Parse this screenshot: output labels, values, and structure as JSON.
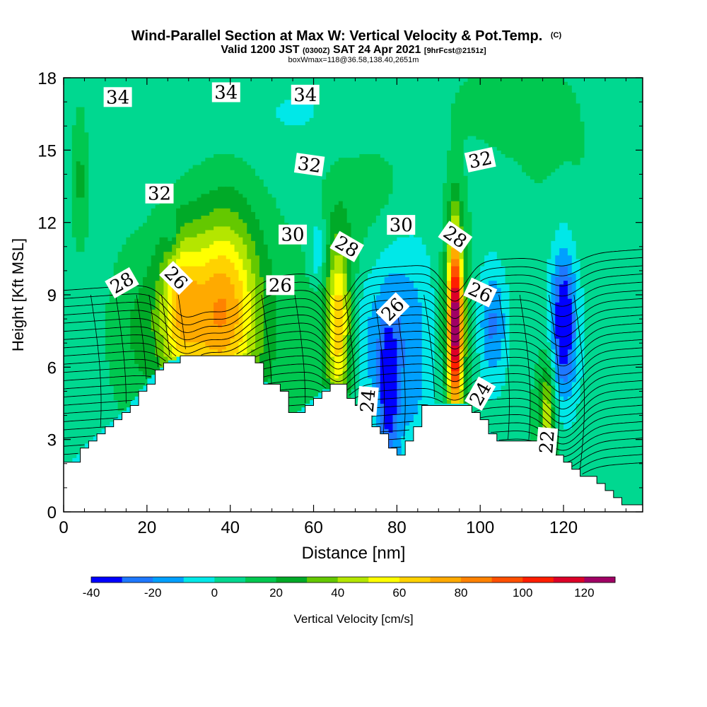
{
  "chart_data": {
    "type": "heatmap",
    "title": "Wind-Parallel Section at Max W: Vertical Velocity & Pot.Temp.",
    "title_mark": "(C)",
    "subtitle_main_a": "Valid 1200 JST",
    "subtitle_small_a": "(0300Z)",
    "subtitle_main_b": "SAT 24 Apr 2021",
    "subtitle_small_b": "[9hrFcst@2151z]",
    "subtitle2": "boxWmax=118@36.58,138.40,2651m",
    "xlabel": "Distance [nm]",
    "ylabel": "Height [Kft MSL]",
    "xlim": [
      0,
      139
    ],
    "ylim": [
      0,
      18
    ],
    "xticks": [
      "0",
      "20",
      "40",
      "60",
      "80",
      "100",
      "120"
    ],
    "yticks": [
      "0",
      "3",
      "6",
      "9",
      "12",
      "15",
      "18"
    ],
    "colorbar": {
      "label": "Vertical Velocity [cm/s]",
      "ticks": [
        "-40",
        "-20",
        "0",
        "20",
        "40",
        "60",
        "80",
        "100",
        "120"
      ],
      "levels": [
        -40,
        -30,
        -20,
        -10,
        0,
        10,
        20,
        30,
        40,
        50,
        60,
        70,
        80,
        90,
        100,
        110,
        120,
        130
      ],
      "colors": [
        "#0000ff",
        "#1e78ff",
        "#00a0ff",
        "#00e8e8",
        "#00d890",
        "#00c850",
        "#00aa28",
        "#64c800",
        "#b4e600",
        "#ffff00",
        "#ffd200",
        "#ffaa00",
        "#ff8200",
        "#ff5000",
        "#ff1e00",
        "#dc0028",
        "#a00064",
        "#6400a0"
      ]
    },
    "theta_contour_labels": [
      {
        "text": "34",
        "x": 13,
        "y": 17.2
      },
      {
        "text": "34",
        "x": 39,
        "y": 17.4
      },
      {
        "text": "34",
        "x": 58,
        "y": 17.3
      },
      {
        "text": "32",
        "x": 23,
        "y": 13.2
      },
      {
        "text": "32",
        "x": 59,
        "y": 14.4
      },
      {
        "text": "32",
        "x": 100,
        "y": 14.6
      },
      {
        "text": "30",
        "x": 55,
        "y": 11.5
      },
      {
        "text": "30",
        "x": 81,
        "y": 11.9
      },
      {
        "text": "28",
        "x": 14,
        "y": 9.5
      },
      {
        "text": "28",
        "x": 68,
        "y": 11.0
      },
      {
        "text": "28",
        "x": 94,
        "y": 11.4
      },
      {
        "text": "26",
        "x": 27,
        "y": 9.7
      },
      {
        "text": "26",
        "x": 52,
        "y": 9.4
      },
      {
        "text": "26",
        "x": 79,
        "y": 8.4
      },
      {
        "text": "26",
        "x": 100,
        "y": 9.1
      },
      {
        "text": "24",
        "x": 73,
        "y": 4.6
      },
      {
        "text": "24",
        "x": 100,
        "y": 4.9
      },
      {
        "text": "22",
        "x": 116,
        "y": 2.9
      }
    ],
    "theta_contour_levels": [
      21.5,
      22,
      22.5,
      23,
      23.5,
      24,
      24.5,
      25,
      25.5,
      26,
      26.5,
      27,
      27.5,
      28,
      28.5,
      29,
      29.5,
      30,
      30.5,
      31,
      31.5,
      32,
      32.5,
      33,
      33.5,
      34,
      34.5
    ]
  }
}
